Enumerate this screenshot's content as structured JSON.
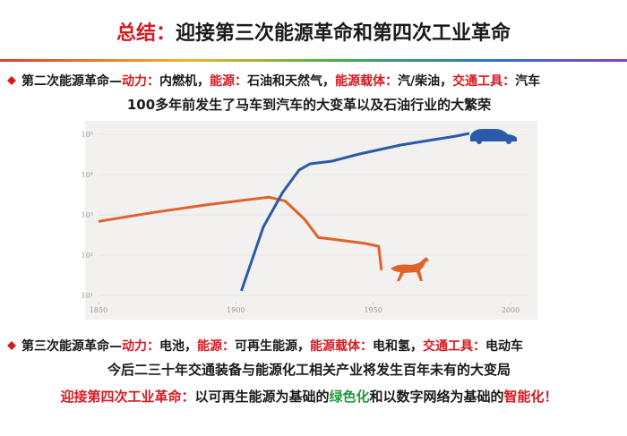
{
  "title": {
    "lead": "总结：",
    "text": "迎接第三次能源革命和第四次工业革命"
  },
  "bullet_1": [
    "第二次能源革命—",
    "动力：",
    "内燃机，",
    "能源：",
    "石油和天然气，",
    "能源载体：",
    "汽/柴油，",
    "交通工具：",
    "汽车"
  ],
  "subtitle_1": "100多年前发生了马车到汽车的大变革以及石油行业的大繁荣",
  "bullet_2": [
    "第三次能源革命—",
    "动力：",
    "电池，",
    "能源：",
    "可再生能源，",
    "能源载体：",
    "电和氢，",
    "交通工具：",
    "电动车"
  ],
  "subtitle_2": "今后二三十年交通装备与能源化工相关产业将发生百年未有的大变局",
  "conclusion": [
    "迎接第四次工业革命：",
    "以可再生能源为基础的",
    "绿色化",
    "和以数字网络为基础的",
    "智能化！"
  ],
  "chart_data": {
    "type": "line",
    "yscale": "log",
    "xlim": [
      1850,
      2000
    ],
    "xticks": [
      1850,
      1900,
      1950,
      2000
    ],
    "ylim": [
      10,
      100000
    ],
    "yticks": [
      {
        "value": 10,
        "label": "10¹"
      },
      {
        "value": 100,
        "label": "10²"
      },
      {
        "value": 1000,
        "label": "10³"
      },
      {
        "value": 10000,
        "label": "10⁴"
      },
      {
        "value": 100000,
        "label": "10⁵"
      }
    ],
    "grid": true,
    "series": [
      {
        "color": "#e0622a",
        "x": [
          1850,
          1870,
          1890,
          1912,
          1918,
          1925,
          1930,
          1937,
          1947,
          1952,
          1953
        ],
        "values": [
          690,
          1150,
          1800,
          2750,
          2200,
          780,
          275,
          240,
          195,
          166,
          42
        ]
      },
      {
        "color": "#2a5aa8",
        "x": [
          1902,
          1910,
          1917,
          1923,
          1927,
          1935,
          1945,
          1960,
          1970,
          1980,
          1985
        ],
        "values": [
          13,
          500,
          3600,
          13000,
          18500,
          21500,
          32500,
          54000,
          70000,
          90000,
          105000
        ]
      }
    ]
  }
}
